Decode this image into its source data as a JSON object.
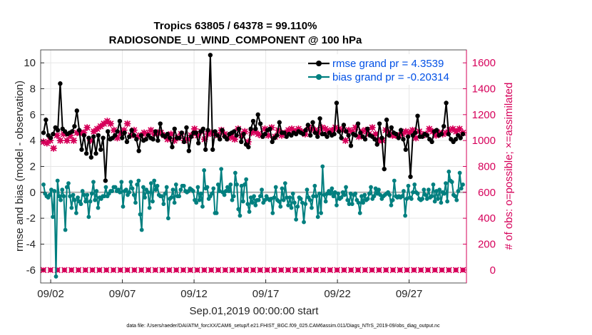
{
  "chart_data": {
    "type": "line",
    "title": "Tropics 63805 / 64378 = 99.110%",
    "subtitle": "RADIOSONDE_U_WIND_COMPONENT @ 100 hPa",
    "xlabel": "Sep.01,2019 00:00:00 start",
    "ylabel": "rmse and bias (model - observation)",
    "ylabel_right": "# of obs: o=possible; ×=assimilated",
    "footnote": "data file: /Users/raeder/DAI/ATM_forcXX/CAM6_setup/f.e21.FHIST_BGC.f09_025.CAM6assim.011/Diags_NTrS_2019-09/obs_diag_output.nc",
    "x_ticks": [
      "09/02",
      "09/07",
      "09/12",
      "09/17",
      "09/22",
      "09/27"
    ],
    "x_tick_days": [
      2,
      7,
      12,
      17,
      22,
      27
    ],
    "xlim": [
      1.3,
      31.0
    ],
    "ylim": [
      -7,
      11
    ],
    "y_ticks": [
      -6,
      -4,
      -2,
      0,
      2,
      4,
      6,
      8,
      10
    ],
    "ylim_right": [
      -100,
      1700
    ],
    "y_ticks_right": [
      0,
      200,
      400,
      600,
      800,
      1000,
      1200,
      1400,
      1600
    ],
    "grid": true,
    "legend_position": "top-right",
    "colors": {
      "rmse": "#000000",
      "bias": "#007f7f",
      "obs": "#d6005a",
      "legend_text": "#0050e6",
      "zero_line": "#b4b4b4"
    },
    "series": [
      {
        "name": "rmse grand pr = 4.3539",
        "axis": "left",
        "values": [
          4.6,
          5.6,
          4.4,
          4.2,
          4.5,
          5.0,
          4.8,
          8.4,
          4.9,
          4.7,
          4.5,
          4.6,
          4.7,
          5.1,
          6.3,
          4.8,
          3.3,
          4.4,
          3.0,
          4.2,
          2.7,
          4.3,
          3.0,
          4.4,
          3.3,
          4.2,
          0.9,
          4.7,
          4.1,
          4.2,
          4.4,
          4.7,
          5.5,
          4.2,
          4.6,
          3.9,
          4.3,
          4.8,
          4.4,
          4.1,
          3.2,
          4.4,
          4.0,
          4.1,
          4.4,
          4.2,
          4.1,
          4.7,
          4.0,
          5.3,
          4.4,
          4.3,
          4.5,
          4.2,
          3.5,
          4.9,
          4.2,
          4.2,
          4.6,
          3.9,
          5.0,
          3.2,
          4.3,
          4.6,
          4.6,
          3.8,
          4.7,
          4.9,
          3.3,
          4.8,
          10.6,
          3.3,
          4.7,
          4.4,
          4.1,
          4.8,
          4.3,
          4.1,
          4.5,
          4.6,
          4.7,
          4.4,
          4.9,
          3.9,
          4.5,
          3.7,
          3.5,
          4.9,
          5.5,
          4.9,
          6.0,
          5.3,
          4.3,
          4.5,
          4.8,
          4.9,
          3.9,
          4.2,
          4.4,
          5.4,
          4.6,
          4.6,
          4.3,
          4.5,
          4.4,
          4.6,
          4.5,
          4.7,
          4.6,
          4.5,
          4.8,
          5.2,
          4.4,
          5.4,
          4.6,
          4.3,
          5.7,
          4.5,
          4.5,
          4.3,
          4.6,
          4.4,
          4.5,
          6.9,
          4.7,
          4.2,
          5.2,
          4.7,
          4.4,
          3.6,
          4.5,
          4.4,
          5.3,
          4.6,
          4.3,
          4.1,
          4.9,
          4.4,
          4.3,
          4.1,
          3.7,
          5.3,
          4.2,
          1.8,
          5.6,
          4.4,
          5.0,
          4.6,
          4.5,
          4.2,
          4.8,
          4.1,
          3.3,
          4.3,
          1.2,
          4.4,
          4.6,
          5.9,
          4.3,
          4.3,
          4.5,
          4.4,
          4.1,
          3.9,
          4.7,
          4.8,
          4.4,
          4.5,
          5.1,
          6.9,
          4.5,
          4.1,
          3.9,
          4.1,
          4.4,
          4.2,
          4.5
        ]
      },
      {
        "name": "bias grand pr = -0.20314",
        "axis": "left",
        "values": [
          0.6,
          -0.1,
          -0.3,
          -0.4,
          -0.2,
          0.2,
          -1.9,
          0.1,
          -6.5,
          0.9,
          -0.3,
          -0.6,
          0.2,
          -0.3,
          -2.9,
          0.4,
          0.7,
          -0.3,
          -1.2,
          -0.2,
          -0.6,
          -1.6,
          -0.4,
          -0.7,
          -0.9,
          0.1,
          -0.2,
          -0.7,
          -0.2,
          -1.9,
          -0.7,
          -0.1,
          0.8,
          -0.6,
          0.1,
          -1.2,
          -0.4,
          -0.5,
          -0.3,
          -0.3,
          0.4,
          -0.3,
          -0.1,
          0.1,
          0.1,
          0.4,
          0.4,
          0.1,
          0.2,
          0.0,
          0.8,
          -1.1,
          0.1,
          0.2,
          -0.2,
          0.0,
          0.8,
          0.3,
          -0.2,
          -0.8,
          0.6,
          0.9,
          -1.7,
          -2.9,
          0.4,
          -0.4,
          0.2,
          0.0,
          -1.2,
          0.7,
          -0.7,
          0.9,
          0.2,
          0.5,
          -0.2,
          -0.3,
          -0.3,
          -0.9,
          -0.1,
          0.4,
          -2.0,
          -0.5,
          -0.4,
          0.2,
          -0.8,
          0.6,
          -0.3,
          -0.3,
          0.2,
          0.5,
          0.5,
          0.1,
          0.0,
          0.1,
          0.3,
          0.2,
          0.1,
          -0.6,
          -0.8,
          0.4,
          -0.6,
          -0.1,
          -1.1,
          1.7,
          0.3,
          0.4,
          -0.5,
          -0.3,
          -0.1,
          0.3,
          -1.6,
          -1.6,
          0.6,
          0.1,
          1.8,
          0.0,
          -0.2,
          0.1,
          0.4,
          0.1,
          0.6,
          -0.6,
          -0.3,
          1.5,
          0.6,
          -1.3,
          -1.8,
          0.5,
          -0.7,
          0.6,
          1.0,
          -0.9,
          -1.5,
          -0.4,
          -0.8,
          -0.3,
          -1.0,
          -0.6,
          -0.6,
          -0.3,
          0.2,
          -0.8,
          -0.6,
          -0.3,
          -0.5,
          -0.6,
          -0.5,
          -1.6,
          -0.4,
          0.4,
          -0.6,
          -0.7,
          -1.1,
          0.3,
          -0.6,
          0.7,
          -0.4,
          -1.0,
          -0.4,
          -1.2,
          -0.1,
          -0.8,
          -2.1,
          -1.1,
          -0.4,
          -0.5,
          -0.8,
          -2.3,
          -0.9,
          0.2,
          -0.4,
          -0.6,
          -1.2,
          -0.3,
          0.5,
          -0.3,
          -1.9,
          -0.1,
          -1.6,
          2.0,
          -0.2,
          -0.7,
          -0.1,
          0.1,
          -0.1,
          0.3,
          -0.3,
          0.0,
          -1.0,
          -0.1,
          -0.5,
          -0.4,
          0.0,
          -0.2,
          0.4,
          -0.6,
          -0.9,
          -0.1,
          -0.9,
          -0.2,
          -0.1,
          -0.6,
          -0.8,
          -1.6,
          -0.3,
          -0.8,
          -0.2,
          -0.6,
          -0.5,
          -0.1,
          0.4,
          -0.5,
          -0.3,
          0.3,
          -0.1,
          0.2,
          -0.2,
          -0.5,
          -0.3,
          -0.2,
          -0.1,
          0.0,
          -0.2,
          -1.0,
          -0.6,
          0.9,
          -0.3,
          -0.4,
          -0.3,
          -0.4,
          -0.3,
          0.1,
          -1.8,
          -0.5,
          0.5,
          -0.4,
          -0.5,
          0.0,
          0.6,
          0.0,
          -0.1,
          -0.5,
          -0.6,
          -0.5,
          0.2,
          -0.2,
          -0.5,
          0.2,
          -0.4,
          -0.3,
          0.6,
          -0.7,
          0.1,
          -0.5,
          0.2,
          -0.8,
          0.0,
          -0.1,
          0.7,
          -0.7,
          1.6,
          0.9,
          0.8,
          -0.2,
          -0.3,
          -0.6,
          0.1,
          1.5,
          0.3,
          0.6
        ]
      }
    ],
    "obs_possible": [
      0,
      0,
      0,
      0,
      0,
      0,
      0,
      0,
      0,
      0,
      0,
      0,
      0,
      0,
      0,
      0,
      0,
      0,
      0,
      0,
      0,
      0,
      0,
      0,
      0,
      0,
      0,
      0,
      0,
      0,
      0,
      0,
      0,
      0,
      0,
      0,
      0,
      0,
      0,
      0,
      0,
      0,
      0,
      0,
      0,
      0,
      0,
      0,
      0,
      0,
      0,
      0,
      0,
      0,
      0,
      0,
      0,
      0,
      0,
      0,
      0
    ],
    "obs_assimilated": [
      990,
      980,
      1000,
      940,
      1040,
      1000,
      1050,
      1000,
      1040,
      1000,
      1060,
      1060,
      1060,
      1100,
      1000,
      1070,
      1090,
      1110,
      1130,
      1150,
      1130,
      1080,
      1020,
      1060,
      1080,
      1130,
      1040,
      1080,
      1030,
      1040,
      1060,
      1050,
      1080,
      1050,
      1060,
      1060,
      1040,
      1010,
      1050,
      1000,
      1020,
      1050,
      1000,
      1010,
      1040,
      1090,
      1040,
      1070,
      1010,
      1050,
      1060,
      1050,
      1040,
      1080,
      1050,
      1020,
      1030,
      1010,
      1090,
      1040,
      1070,
      990,
      1060,
      1070,
      1050,
      1040,
      1090,
      1040,
      1100,
      1030,
      1080,
      1040,
      1060,
      1080,
      1090,
      1070,
      1090,
      1070,
      1050,
      1100,
      1090,
      1080,
      1060,
      1100,
      1090,
      1070,
      1080,
      1100,
      1090,
      1080,
      1000,
      1080,
      1070,
      1100,
      1030,
      1070,
      1080,
      1050,
      1100,
      1050,
      1000,
      1000,
      1080,
      1060,
      1040,
      1040,
      1040,
      1050,
      1070,
      1060,
      1080,
      1020,
      1070,
      1040,
      1050,
      1090,
      1070,
      1040,
      1060,
      1050,
      1060,
      1080,
      1090,
      1070,
      1090,
      1060
    ]
  }
}
